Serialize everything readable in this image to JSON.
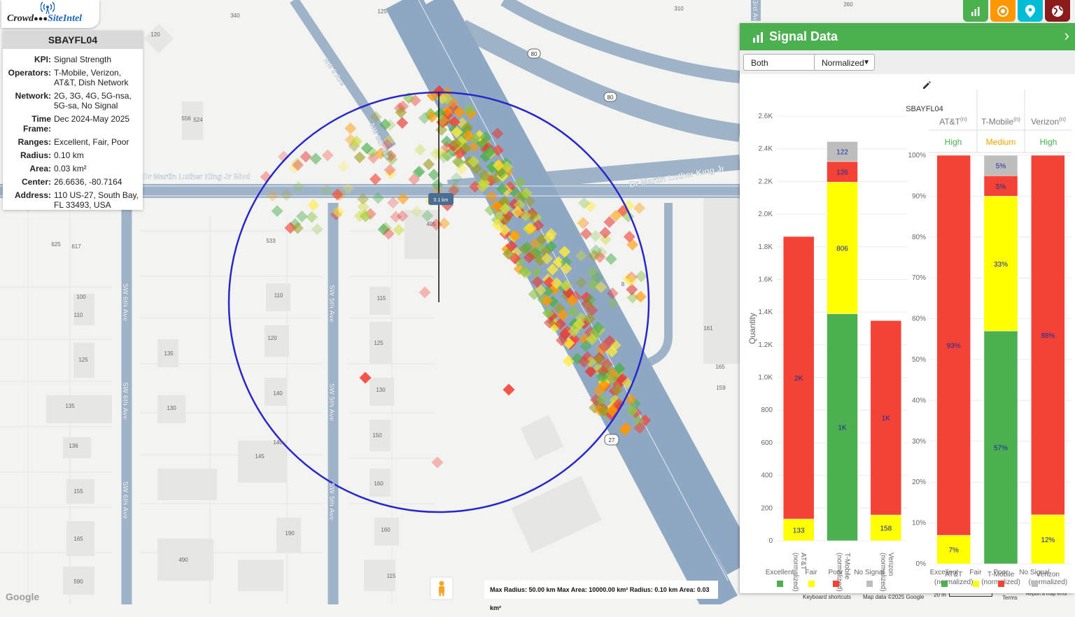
{
  "app": {
    "logo_left": "Crowd",
    "logo_right": "SiteIntel"
  },
  "site": {
    "name": "SBAYFL04",
    "rows": [
      {
        "key": "KPI:",
        "value": "Signal Strength"
      },
      {
        "key": "Operators:",
        "value": "T-Mobile, Verizon, AT&T, Dish Network"
      },
      {
        "key": "Network:",
        "value": "2G, 3G, 4G, 5G-nsa, 5G-sa, No Signal"
      },
      {
        "key": "Time Frame:",
        "value": "Dec 2024-May 2025"
      },
      {
        "key": "Ranges:",
        "value": "Excellent, Fair, Poor"
      },
      {
        "key": "Radius:",
        "value": "0.10 km"
      },
      {
        "key": "Area:",
        "value": "0.03 km²"
      },
      {
        "key": "Center:",
        "value": "26.6636, -80.7164"
      },
      {
        "key": "Address:",
        "value": "110 US-27, South Bay, FL 33493, USA"
      }
    ]
  },
  "toolbar": {
    "colors": [
      "#4caf50",
      "#ff9800",
      "#00bcd4",
      "#8b1a1a"
    ],
    "icons": [
      "bar-chart-icon",
      "target-icon",
      "location-pin-icon",
      "globe-icon"
    ]
  },
  "map": {
    "streets": {
      "mlk_west": "Dr Martin Luther King Jr Blvd",
      "mlk_east": "Dr Martin Luther King Jr",
      "nw5": "NW 5 Ave",
      "nw5b": "NW 5th Ave",
      "sw6": "SW 6th Ave",
      "sw5": "SW 5th Ave",
      "ave3": "3rd Av"
    },
    "shields": [
      "80",
      "80",
      "27"
    ],
    "radius_label": "0.1 km",
    "building_numbers": [
      "125",
      "340",
      "310",
      "260",
      "120",
      "556",
      "524",
      "533",
      "405",
      "625",
      "617",
      "100",
      "110",
      "110",
      "115",
      "120",
      "125",
      "125",
      "135",
      "130",
      "135",
      "130",
      "140",
      "136",
      "140",
      "145",
      "150",
      "155",
      "160",
      "165",
      "160",
      "190",
      "590",
      "490",
      "115",
      "161",
      "165",
      "159",
      "8"
    ],
    "scale_text": "Max Radius: 50.00 km  Max Area: 10000.00 km²  Radius: 0.10 km  Area: 0.03 km²",
    "google": "Google",
    "credits": {
      "shortcuts": "Keyboard shortcuts",
      "mapdata": "Map data ©2025 Google",
      "scale": "20 m",
      "terms": "Terms",
      "report": "Report a map error"
    }
  },
  "panel": {
    "title": "Signal Data",
    "select_network": "Both",
    "select_mode": "Normalized",
    "chart_label": "SBAYFL04",
    "kpi_headers": [
      "AT&T",
      "T-Mobile",
      "Verizon"
    ],
    "kpi_sup": "(n)",
    "kpi_values": [
      "High",
      "Medium",
      "High"
    ],
    "kpi_colors": [
      "#4caf50",
      "#f0a800",
      "#4caf50"
    ],
    "legend": [
      "Excellent",
      "Fair",
      "Poor",
      "No Signal"
    ],
    "legend_colors": [
      "#4caf50",
      "#ffff00",
      "#f44336",
      "#bdbdbd"
    ]
  },
  "chart_data": [
    {
      "type": "bar",
      "stacked": true,
      "title": "",
      "ylabel": "Quantity",
      "ylim": [
        0,
        2600
      ],
      "yticks": [
        "0",
        "200",
        "400",
        "600",
        "800",
        "1.0K",
        "1.2K",
        "1.4K",
        "1.6K",
        "1.8K",
        "2.0K",
        "2.2K",
        "2.4K",
        "2.6K"
      ],
      "categories": [
        "AT&T (normalized)",
        "T-Mobile (normalized)",
        "Verizon (normalized)"
      ],
      "series": [
        {
          "name": "Excellent",
          "color": "#4caf50",
          "values": [
            0,
            1390,
            0
          ],
          "labels": [
            "",
            "1K",
            ""
          ]
        },
        {
          "name": "Fair",
          "color": "#ffff00",
          "values": [
            133,
            806,
            158
          ],
          "labels": [
            "133",
            "806",
            "158"
          ]
        },
        {
          "name": "Poor",
          "color": "#f44336",
          "values": [
            1730,
            126,
            1190
          ],
          "labels": [
            "2K",
            "126",
            "1K"
          ]
        },
        {
          "name": "No Signal",
          "color": "#bdbdbd",
          "values": [
            0,
            122,
            0
          ],
          "labels": [
            "",
            "122",
            ""
          ]
        }
      ]
    },
    {
      "type": "bar",
      "stacked": true,
      "title": "",
      "ylim": [
        0,
        100
      ],
      "yticks": [
        "0%",
        "10%",
        "20%",
        "30%",
        "40%",
        "50%",
        "60%",
        "70%",
        "80%",
        "90%",
        "100%"
      ],
      "categories": [
        "AT&T (normalized)",
        "T-Mobile (normalized)",
        "Verizon (normalized)"
      ],
      "series": [
        {
          "name": "Excellent",
          "color": "#4caf50",
          "values": [
            0,
            57,
            0
          ],
          "labels": [
            "",
            "57%",
            ""
          ]
        },
        {
          "name": "Fair",
          "color": "#ffff00",
          "values": [
            7,
            33,
            12
          ],
          "labels": [
            "7%",
            "33%",
            "12%"
          ]
        },
        {
          "name": "Poor",
          "color": "#f44336",
          "values": [
            93,
            5,
            88
          ],
          "labels": [
            "93%",
            "5%",
            "88%"
          ]
        },
        {
          "name": "No Signal",
          "color": "#bdbdbd",
          "values": [
            0,
            5,
            0
          ],
          "labels": [
            "",
            "5%",
            ""
          ]
        }
      ]
    }
  ]
}
